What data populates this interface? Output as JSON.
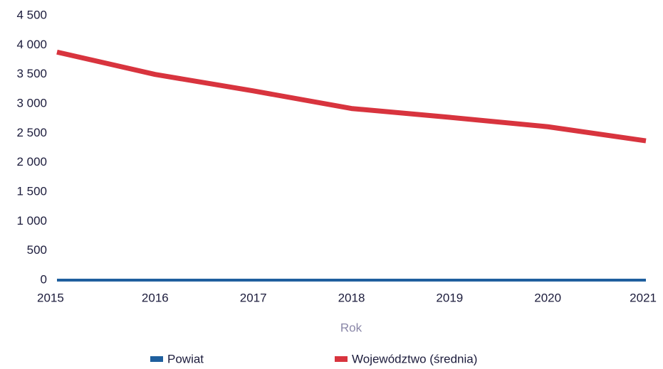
{
  "chart_data": {
    "type": "line",
    "x": [
      2015,
      2016,
      2017,
      2018,
      2019,
      2020,
      2021
    ],
    "xlabel": "Rok",
    "series": [
      {
        "name": "Powiat",
        "color": "#1f5f9e",
        "values": [
          0,
          0,
          0,
          0,
          0,
          0,
          0
        ]
      },
      {
        "name": "Województwo (średnia)",
        "color": "#d8343e",
        "values": [
          3880,
          3500,
          3220,
          2920,
          2770,
          2610,
          2370
        ]
      }
    ],
    "xlim": [
      2015,
      2021
    ],
    "xticks": [
      2015,
      2016,
      2017,
      2018,
      2019,
      2020,
      2021
    ],
    "ylim": [
      0,
      4500
    ],
    "yticks": [
      0,
      500,
      {
        "value": 1000,
        "label": "1 000"
      },
      {
        "value": 1500,
        "label": "1 500"
      },
      {
        "value": 2000,
        "label": "2 000"
      },
      {
        "value": 2500,
        "label": "2 500"
      },
      {
        "value": 3000,
        "label": "3 000"
      },
      {
        "value": 3500,
        "label": "3 500"
      },
      {
        "value": 4000,
        "label": "4 000"
      },
      {
        "value": 4500,
        "label": "4 500"
      }
    ],
    "grid": false,
    "legend": "bottom"
  }
}
